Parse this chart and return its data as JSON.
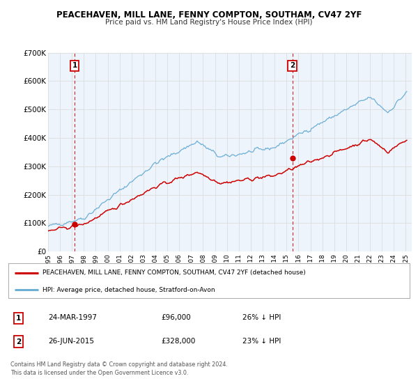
{
  "title": "PEACEHAVEN, MILL LANE, FENNY COMPTON, SOUTHAM, CV47 2YF",
  "subtitle": "Price paid vs. HM Land Registry's House Price Index (HPI)",
  "ylim": [
    0,
    700000
  ],
  "yticks": [
    0,
    100000,
    200000,
    300000,
    400000,
    500000,
    600000,
    700000
  ],
  "ytick_labels": [
    "£0",
    "£100K",
    "£200K",
    "£300K",
    "£400K",
    "£500K",
    "£600K",
    "£700K"
  ],
  "xlim_start": 1995.0,
  "xlim_end": 2025.5,
  "xticks": [
    1995,
    1996,
    1997,
    1998,
    1999,
    2000,
    2001,
    2002,
    2003,
    2004,
    2005,
    2006,
    2007,
    2008,
    2009,
    2010,
    2011,
    2012,
    2013,
    2014,
    2015,
    2016,
    2017,
    2018,
    2019,
    2020,
    2021,
    2022,
    2023,
    2024,
    2025
  ],
  "hpi_color": "#6baed6",
  "sale_color": "#cc0000",
  "vline_color": "#cc0000",
  "grid_color": "#d8d8d8",
  "bg_color": "#eef4fb",
  "sale1_x": 1997.23,
  "sale1_y": 96000,
  "sale2_x": 2015.49,
  "sale2_y": 328000,
  "legend_sale_label": "PEACEHAVEN, MILL LANE, FENNY COMPTON, SOUTHAM, CV47 2YF (detached house)",
  "legend_hpi_label": "HPI: Average price, detached house, Stratford-on-Avon",
  "table_row1": [
    "1",
    "24-MAR-1997",
    "£96,000",
    "26% ↓ HPI"
  ],
  "table_row2": [
    "2",
    "26-JUN-2015",
    "£328,000",
    "23% ↓ HPI"
  ],
  "footer_line1": "Contains HM Land Registry data © Crown copyright and database right 2024.",
  "footer_line2": "This data is licensed under the Open Government Licence v3.0."
}
